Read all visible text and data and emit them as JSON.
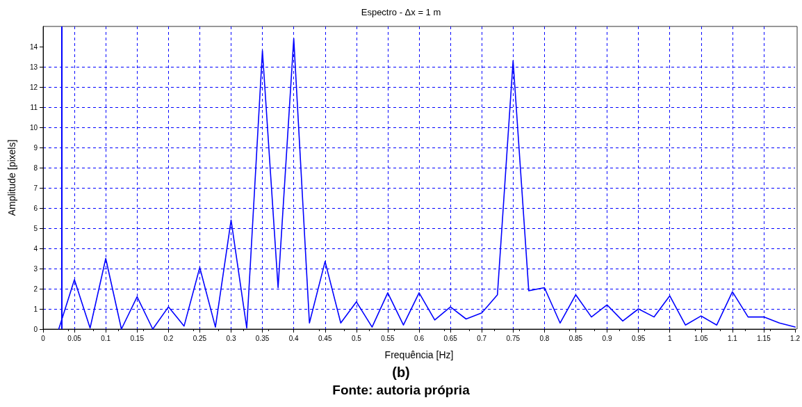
{
  "chart_data": {
    "type": "line",
    "title": "Espectro - Δx = 1 m",
    "xlabel": "Frequência [Hz]",
    "ylabel": "Amplitude [pixels]",
    "annotations": [
      "(b)",
      "Fonte: autoria própria"
    ],
    "x": [
      0.025,
      0.05,
      0.075,
      0.1,
      0.125,
      0.15,
      0.175,
      0.2,
      0.225,
      0.25,
      0.275,
      0.3,
      0.325,
      0.35,
      0.375,
      0.4,
      0.425,
      0.45,
      0.475,
      0.5,
      0.525,
      0.55,
      0.575,
      0.6,
      0.625,
      0.65,
      0.675,
      0.7,
      0.725,
      0.75,
      0.775,
      0.8,
      0.825,
      0.85,
      0.875,
      0.9,
      0.925,
      0.95,
      0.975,
      1.0,
      1.025,
      1.05,
      1.075,
      1.1,
      1.125,
      1.15,
      1.175,
      1.2
    ],
    "series": [
      {
        "color": "#0000ff",
        "values": [
          0,
          2.45,
          0.05,
          3.5,
          0,
          1.6,
          0,
          1.1,
          0.15,
          3.05,
          0.1,
          5.4,
          0.05,
          13.8,
          2.05,
          14.4,
          0.3,
          3.35,
          0.3,
          1.35,
          0.1,
          1.8,
          0.2,
          1.8,
          0.45,
          1.1,
          0.5,
          0.8,
          1.7,
          13.3,
          1.9,
          2.05,
          0.3,
          1.7,
          0.6,
          1.2,
          0.4,
          1.0,
          0.6,
          1.65,
          0.2,
          0.65,
          0.2,
          1.85,
          0.6,
          0.6,
          0.3,
          0.1
        ]
      }
    ],
    "ref_lines": [
      {
        "axis": "x",
        "value": 0.025,
        "label": null,
        "color": "#0000ff"
      }
    ],
    "xlim": [
      0,
      1.2
    ],
    "xticks": [
      0,
      0.05,
      0.1,
      0.15,
      0.2,
      0.25,
      0.3,
      0.35,
      0.4,
      0.45,
      0.5,
      0.55,
      0.6,
      0.65,
      0.7,
      0.75,
      0.8,
      0.85,
      0.9,
      0.95,
      1,
      1.05,
      1.1,
      1.15,
      1.2
    ],
    "ylim": [
      0,
      15
    ],
    "yticks": [
      0,
      1,
      2,
      3,
      4,
      5,
      6,
      7,
      8,
      9,
      10,
      11,
      12,
      13,
      14
    ],
    "grid": true,
    "marker": "none",
    "line_style": "solid"
  }
}
